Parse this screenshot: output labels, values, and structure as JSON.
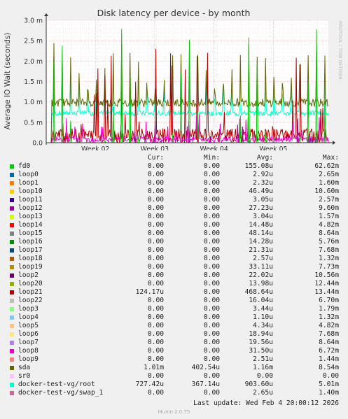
{
  "chart_data": {
    "type": "line",
    "title": "Disk latency per device - by month",
    "ylabel": "Average IO Wait (seconds)",
    "side_label": "RRDTOOL / TOBI OETIKER",
    "ylim": [
      0,
      0.003
    ],
    "yticks": [
      "0.0",
      "0.5 m",
      "1.0 m",
      "1.5 m",
      "2.0 m",
      "2.5 m",
      "3.0 m"
    ],
    "xticks": [
      "Week 02",
      "Week 03",
      "Week 04",
      "Week 05"
    ],
    "x_range_days": [
      0,
      33.3
    ],
    "week_tick_days": [
      5.8,
      12.8,
      19.8,
      26.8
    ],
    "grid": true,
    "legend_columns": [
      "Cur:",
      "Min:",
      "Avg:",
      "Max:"
    ],
    "series": [
      {
        "name": "fd0",
        "color": "#00cc00",
        "cur": "0.00",
        "min": "0.00",
        "avg": "155.08u",
        "max": "62.62m"
      },
      {
        "name": "loop0",
        "color": "#0066b3",
        "cur": "0.00",
        "min": "0.00",
        "avg": "2.92u",
        "max": "2.65m"
      },
      {
        "name": "loop1",
        "color": "#ff8000",
        "cur": "0.00",
        "min": "0.00",
        "avg": "2.32u",
        "max": "1.60m"
      },
      {
        "name": "loop10",
        "color": "#ffcc00",
        "cur": "0.00",
        "min": "0.00",
        "avg": "46.49u",
        "max": "10.60m"
      },
      {
        "name": "loop11",
        "color": "#330099",
        "cur": "0.00",
        "min": "0.00",
        "avg": "3.05u",
        "max": "2.57m"
      },
      {
        "name": "loop12",
        "color": "#990099",
        "cur": "0.00",
        "min": "0.00",
        "avg": "27.23u",
        "max": "9.60m"
      },
      {
        "name": "loop13",
        "color": "#ccff00",
        "cur": "0.00",
        "min": "0.00",
        "avg": "3.04u",
        "max": "1.57m"
      },
      {
        "name": "loop14",
        "color": "#ff0000",
        "cur": "0.00",
        "min": "0.00",
        "avg": "14.48u",
        "max": "4.82m"
      },
      {
        "name": "loop15",
        "color": "#808080",
        "cur": "0.00",
        "min": "0.00",
        "avg": "48.14u",
        "max": "8.64m"
      },
      {
        "name": "loop16",
        "color": "#008f00",
        "cur": "0.00",
        "min": "0.00",
        "avg": "14.28u",
        "max": "5.76m"
      },
      {
        "name": "loop17",
        "color": "#00487d",
        "cur": "0.00",
        "min": "0.00",
        "avg": "21.31u",
        "max": "7.68m"
      },
      {
        "name": "loop18",
        "color": "#b35a00",
        "cur": "0.00",
        "min": "0.00",
        "avg": "2.57u",
        "max": "1.32m"
      },
      {
        "name": "loop19",
        "color": "#b38f00",
        "cur": "0.00",
        "min": "0.00",
        "avg": "33.11u",
        "max": "7.73m"
      },
      {
        "name": "loop2",
        "color": "#6b006b",
        "cur": "0.00",
        "min": "0.00",
        "avg": "22.02u",
        "max": "10.56m"
      },
      {
        "name": "loop20",
        "color": "#8fb300",
        "cur": "0.00",
        "min": "0.00",
        "avg": "13.98u",
        "max": "12.44m"
      },
      {
        "name": "loop21",
        "color": "#b30000",
        "cur": "124.17u",
        "min": "0.00",
        "avg": "468.64u",
        "max": "13.44m"
      },
      {
        "name": "loop22",
        "color": "#bebebe",
        "cur": "0.00",
        "min": "0.00",
        "avg": "16.04u",
        "max": "6.70m"
      },
      {
        "name": "loop3",
        "color": "#80ff80",
        "cur": "0.00",
        "min": "0.00",
        "avg": "3.44u",
        "max": "1.79m"
      },
      {
        "name": "loop4",
        "color": "#80c9ff",
        "cur": "0.00",
        "min": "0.00",
        "avg": "1.10u",
        "max": "1.32m"
      },
      {
        "name": "loop5",
        "color": "#ffc080",
        "cur": "0.00",
        "min": "0.00",
        "avg": "4.34u",
        "max": "4.82m"
      },
      {
        "name": "loop6",
        "color": "#ffe680",
        "cur": "0.00",
        "min": "0.00",
        "avg": "18.94u",
        "max": "7.68m"
      },
      {
        "name": "loop7",
        "color": "#aa80ff",
        "cur": "0.00",
        "min": "0.00",
        "avg": "19.56u",
        "max": "8.64m"
      },
      {
        "name": "loop8",
        "color": "#ee00cc",
        "cur": "0.00",
        "min": "0.00",
        "avg": "31.50u",
        "max": "6.72m"
      },
      {
        "name": "loop9",
        "color": "#ff8080",
        "cur": "0.00",
        "min": "0.00",
        "avg": "2.51u",
        "max": "1.44m"
      },
      {
        "name": "sda",
        "color": "#666600",
        "cur": "1.01m",
        "min": "402.54u",
        "avg": "1.16m",
        "max": "8.54m"
      },
      {
        "name": "sr0",
        "color": "#ffbfff",
        "cur": "0.00",
        "min": "0.00",
        "avg": "0.00",
        "max": "0.00"
      },
      {
        "name": "docker-test-vg/root",
        "color": "#00ffcc",
        "cur": "727.42u",
        "min": "367.14u",
        "avg": "903.60u",
        "max": "5.01m"
      },
      {
        "name": "docker-test-vg/swap_1",
        "color": "#cc6699",
        "cur": "0.00",
        "min": "0.00",
        "avg": "2.65u",
        "max": "1.40m"
      }
    ]
  },
  "footer": {
    "last_update": "Last update: Wed Feb  4 20:00:12 2026",
    "version": "Munin 2.0.75"
  }
}
